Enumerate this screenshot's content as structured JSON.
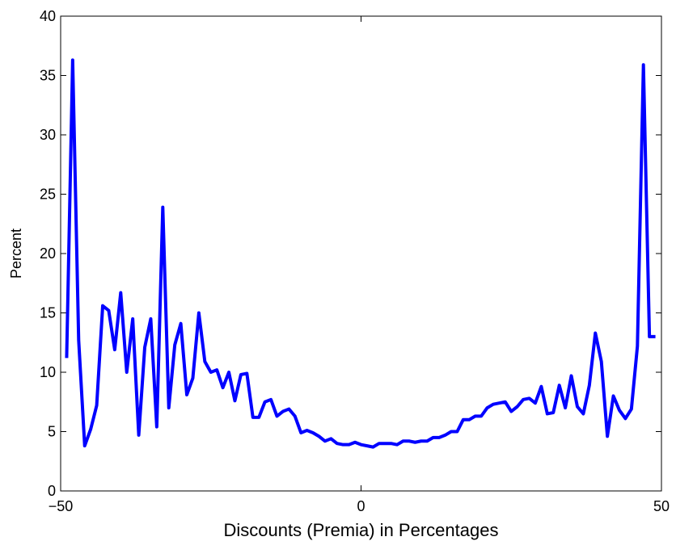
{
  "chart_data": {
    "type": "line",
    "title": "",
    "xlabel": "Discounts (Premia) in Percentages",
    "ylabel": "Percent",
    "xlim": [
      -50,
      50
    ],
    "ylim": [
      0,
      40
    ],
    "xticks": [
      -50,
      0,
      50
    ],
    "yticks": [
      0,
      5,
      10,
      15,
      20,
      25,
      30,
      35,
      40
    ],
    "xtick_labels": [
      "−50",
      "0",
      "50"
    ],
    "ytick_labels": [
      "0",
      "5",
      "10",
      "15",
      "20",
      "25",
      "30",
      "35",
      "40"
    ],
    "grid": false,
    "legend": "none",
    "series": [
      {
        "color": "#0000ff",
        "x": [
          -49,
          -48,
          -47,
          -46,
          -45,
          -44,
          -43,
          -42,
          -41,
          -40,
          -39,
          -38,
          -37,
          -36,
          -35,
          -34,
          -33,
          -32,
          -31,
          -30,
          -29,
          -28,
          -27,
          -26,
          -25,
          -24,
          -23,
          -22,
          -21,
          -20,
          -19,
          -18,
          -17,
          -16,
          -15,
          -14,
          -13,
          -12,
          -11,
          -10,
          -9,
          -8,
          -7,
          -6,
          -5,
          -4,
          -3,
          -2,
          -1,
          0,
          1,
          2,
          3,
          4,
          5,
          6,
          7,
          8,
          9,
          10,
          11,
          12,
          13,
          14,
          15,
          16,
          17,
          18,
          19,
          20,
          21,
          22,
          23,
          24,
          25,
          26,
          27,
          28,
          29,
          30,
          31,
          32,
          33,
          34,
          35,
          36,
          37,
          38,
          39,
          40,
          41,
          42,
          43,
          44,
          45,
          46,
          47,
          48,
          49
        ],
        "y": [
          11.2,
          36.3,
          12.7,
          3.8,
          5.2,
          7.2,
          15.6,
          15.2,
          11.9,
          16.7,
          10.0,
          14.5,
          4.7,
          12.1,
          14.5,
          5.4,
          23.9,
          7.0,
          12.3,
          14.1,
          8.1,
          9.5,
          15.0,
          10.9,
          10.0,
          10.2,
          8.7,
          10.0,
          7.6,
          9.8,
          9.9,
          6.2,
          6.2,
          7.5,
          7.7,
          6.3,
          6.7,
          6.9,
          6.3,
          4.9,
          5.1,
          4.9,
          4.6,
          4.2,
          4.4,
          4.0,
          3.9,
          3.9,
          4.1,
          3.9,
          3.8,
          3.7,
          4.0,
          4.0,
          4.0,
          3.9,
          4.2,
          4.2,
          4.1,
          4.2,
          4.2,
          4.5,
          4.5,
          4.7,
          5.0,
          5.0,
          6.0,
          6.0,
          6.3,
          6.3,
          7.0,
          7.3,
          7.4,
          7.5,
          6.7,
          7.1,
          7.7,
          7.8,
          7.4,
          8.8,
          6.5,
          6.6,
          8.9,
          7.0,
          9.7,
          7.1,
          6.5,
          8.9,
          13.3,
          10.9,
          4.6,
          8.0,
          6.8,
          6.1,
          6.9,
          12.2,
          35.9,
          13.0,
          13.0
        ]
      }
    ]
  }
}
